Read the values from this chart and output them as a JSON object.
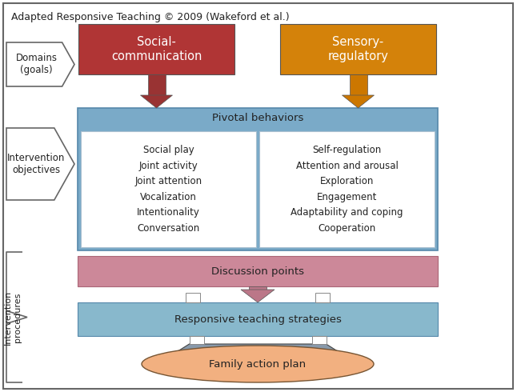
{
  "title": "Adapted Responsive Teaching © 2009 (Wakeford et al.)",
  "title_fontsize": 9,
  "domains_label": "Domains\n(goals)",
  "intervention_obj_label": "Intervention\nobjectives",
  "intervention_proc_label": "Intervention\nprocedures",
  "social_comm_text": "Social-\ncommunication",
  "social_comm_color": "#b03535",
  "social_comm_text_color": "#ffffff",
  "sensory_reg_text": "Sensory-\nregulatory",
  "sensory_reg_color": "#d4820a",
  "sensory_reg_text_color": "#ffffff",
  "pivotal_text": "Pivotal behaviors",
  "pivotal_color": "#7aaac8",
  "left_items": "Social play\nJoint activity\nJoint attention\nVocalization\nIntentionality\nConversation",
  "right_items": "Self-regulation\nAttention and arousal\nExploration\nEngagement\nAdaptability and coping\nCooperation",
  "discussion_text": "Discussion points",
  "discussion_color": "#cc8899",
  "rt_strategies_text": "Responsive teaching strategies",
  "rt_color": "#88b8cc",
  "family_text": "Family action plan",
  "family_color": "#f2b080",
  "arrow_red": "#993333",
  "arrow_orange": "#cc7700",
  "arrow_pink": "#bb7788",
  "fan_color": "#8899aa"
}
